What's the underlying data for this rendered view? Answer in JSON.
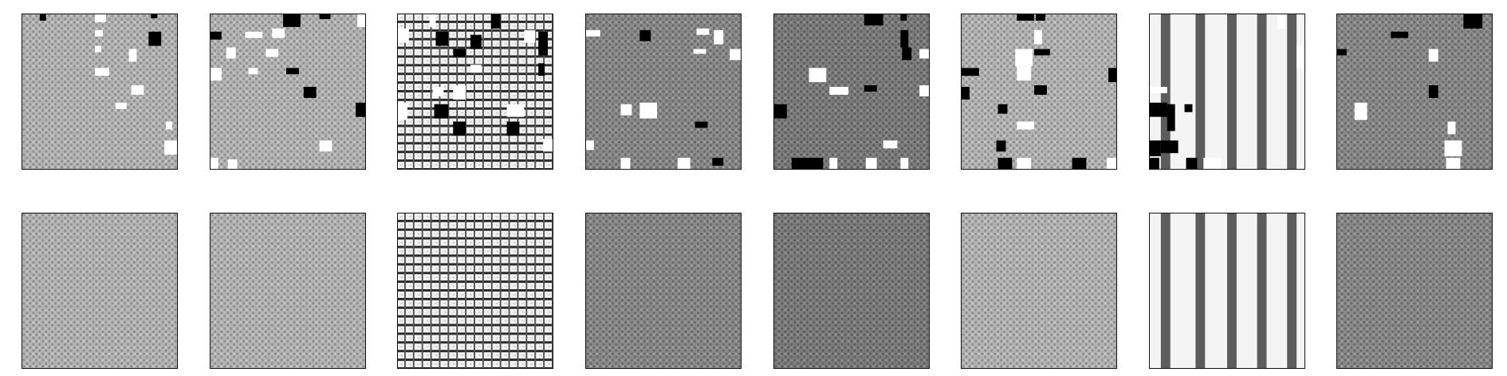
{
  "figure": {
    "rows": [
      {
        "name": "masked-inputs",
        "tiles": [
          {
            "texture": "fine-grid",
            "tone": "light",
            "masked": true
          },
          {
            "texture": "fine-grid",
            "tone": "light",
            "masked": true
          },
          {
            "texture": "bright-grid",
            "tone": "light",
            "masked": true
          },
          {
            "texture": "fine-grid",
            "tone": "medium",
            "masked": true
          },
          {
            "texture": "fine-grid",
            "tone": "dark",
            "masked": true
          },
          {
            "texture": "fine-grid",
            "tone": "light",
            "masked": true
          },
          {
            "texture": "vertical-stripes",
            "tone": "light",
            "masked": true
          },
          {
            "texture": "fine-grid",
            "tone": "medium",
            "masked": true
          }
        ]
      },
      {
        "name": "reconstructions",
        "tiles": [
          {
            "texture": "fine-grid",
            "tone": "light",
            "masked": false
          },
          {
            "texture": "fine-grid",
            "tone": "light",
            "masked": false
          },
          {
            "texture": "bright-grid",
            "tone": "light",
            "masked": false
          },
          {
            "texture": "fine-grid",
            "tone": "medium",
            "masked": false
          },
          {
            "texture": "fine-grid",
            "tone": "dark",
            "masked": false
          },
          {
            "texture": "fine-grid",
            "tone": "light",
            "masked": false
          },
          {
            "texture": "vertical-stripes",
            "tone": "light",
            "masked": false
          },
          {
            "texture": "fine-grid",
            "tone": "medium",
            "masked": false
          }
        ]
      }
    ],
    "colors": {
      "frame": "#111111",
      "background": "#ffffff",
      "mask_black": "#000000",
      "mask_white": "#ffffff"
    }
  }
}
